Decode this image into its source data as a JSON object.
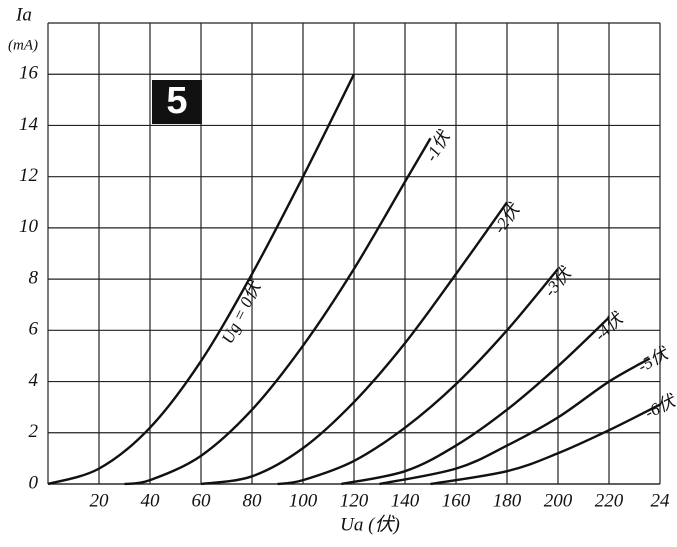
{
  "chart_data": {
    "type": "line",
    "badge": "5",
    "y_label": "Ia",
    "y_unit": "(mA)",
    "x_label": "Ua (伏)",
    "xlim": [
      0,
      240
    ],
    "ylim": [
      0,
      18
    ],
    "xticks": [
      20,
      40,
      60,
      80,
      100,
      120,
      140,
      160,
      180,
      200,
      220,
      {
        "value": 240,
        "label": "24"
      }
    ],
    "yticks": [
      0,
      2,
      4,
      6,
      8,
      10,
      12,
      14,
      16
    ],
    "grid": true,
    "color": "#111111",
    "series": [
      {
        "name": "Ug = 0伏",
        "x": [
          0,
          20,
          40,
          60,
          80,
          100,
          120
        ],
        "values": [
          0,
          0.6,
          2.2,
          4.8,
          8.2,
          12,
          16
        ]
      },
      {
        "name": "-1伏",
        "x": [
          30,
          40,
          60,
          80,
          100,
          120,
          140,
          150
        ],
        "values": [
          0,
          0.15,
          1.1,
          2.9,
          5.4,
          8.4,
          11.8,
          13.5
        ]
      },
      {
        "name": "-2伏",
        "x": [
          60,
          80,
          100,
          120,
          140,
          160,
          180
        ],
        "values": [
          0,
          0.3,
          1.4,
          3.2,
          5.5,
          8.2,
          11
        ]
      },
      {
        "name": "-3伏",
        "x": [
          90,
          100,
          120,
          140,
          160,
          180,
          200
        ],
        "values": [
          0,
          0.15,
          0.9,
          2.2,
          3.9,
          6,
          8.4
        ]
      },
      {
        "name": "-4伏",
        "x": [
          115,
          140,
          160,
          180,
          200,
          220
        ],
        "values": [
          0,
          0.5,
          1.5,
          2.9,
          4.6,
          6.5
        ]
      },
      {
        "name": "-5伏",
        "x": [
          130,
          160,
          180,
          200,
          220,
          236
        ],
        "values": [
          0,
          0.6,
          1.5,
          2.6,
          4,
          4.9
        ]
      },
      {
        "name": "-6伏",
        "x": [
          150,
          180,
          200,
          220,
          240
        ],
        "values": [
          0,
          0.5,
          1.2,
          2.1,
          3.1
        ]
      }
    ]
  }
}
